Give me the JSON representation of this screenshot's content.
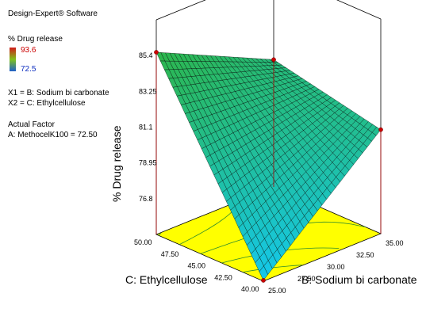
{
  "software": "Design-Expert® Software",
  "response_name": "% Drug release",
  "colorbar": {
    "max": "93.6",
    "min": "72.5",
    "colors": [
      "#d11a1a",
      "#7fc21c",
      "#1f5fc9"
    ]
  },
  "factor_defs": [
    "X1 = B: Sodium bi carbonate",
    "X2 = C: Ethylcellulose"
  ],
  "actual_factor_title": "Actual Factor",
  "actual_factor": "A: MethocelK100 = 72.50",
  "chart_data": {
    "type": "surface3d",
    "title": "",
    "x_axis": {
      "label": "B: Sodium bi carbonate",
      "range": [
        25,
        35
      ],
      "ticks": [
        "25.00",
        "27.50",
        "30.00",
        "32.50",
        "35.00"
      ]
    },
    "y_axis": {
      "label": "C: Ethylcellulose",
      "range": [
        40,
        50
      ],
      "ticks": [
        "40.00",
        "42.50",
        "45.00",
        "47.50",
        "50.00"
      ]
    },
    "z_axis": {
      "label": "% Drug release",
      "range": [
        74.65,
        87.55
      ],
      "ticks": [
        "76.8",
        "78.95",
        "81.1",
        "83.25",
        "85.4"
      ]
    },
    "design_points": [
      {
        "b": 25,
        "c": 40,
        "release": 74.7
      },
      {
        "b": 25,
        "c": 50,
        "release": 85.6
      },
      {
        "b": 35,
        "c": 50,
        "release": 82.3
      },
      {
        "b": 35,
        "c": 40,
        "release": 80.9
      }
    ],
    "surface_color_low": "#14c8ec",
    "surface_color_high": "#2db64a",
    "contour_floor_color": "#ffff00"
  }
}
